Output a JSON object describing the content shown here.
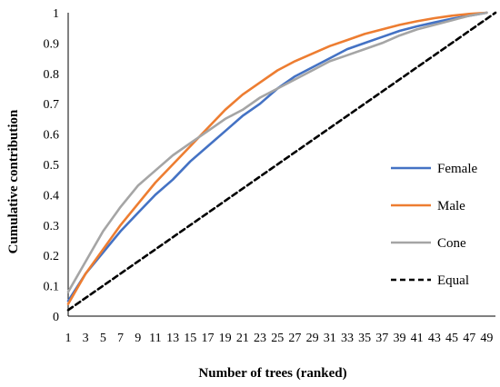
{
  "chart_data": {
    "type": "line",
    "title": "",
    "xlabel": "Number of trees (ranked)",
    "ylabel": "Cumulative contribution",
    "x": [
      1,
      3,
      5,
      7,
      9,
      11,
      13,
      15,
      17,
      19,
      21,
      23,
      25,
      27,
      29,
      31,
      33,
      35,
      37,
      39,
      41,
      43,
      45,
      47,
      49
    ],
    "x_tick_labels": [
      "1",
      "3",
      "5",
      "7",
      "9",
      "11",
      "13",
      "15",
      "17",
      "19",
      "21",
      "23",
      "25",
      "27",
      "29",
      "31",
      "33",
      "35",
      "37",
      "39",
      "41",
      "43",
      "45",
      "47",
      "49"
    ],
    "xlim": [
      1,
      50
    ],
    "ylim": [
      0,
      1
    ],
    "y_ticks": [
      0,
      0.1,
      0.2,
      0.3,
      0.4,
      0.5,
      0.6,
      0.7,
      0.8,
      0.9,
      1
    ],
    "y_tick_labels": [
      "0",
      "0.1",
      "0.2",
      "0.3",
      "0.4",
      "0.5",
      "0.6",
      "0.7",
      "0.8",
      "0.9",
      "1"
    ],
    "grid": false,
    "legend_position": "right",
    "series": [
      {
        "name": "Female",
        "color": "#4472C4",
        "dash": "solid",
        "points": [
          [
            1,
            0.05
          ],
          [
            3,
            0.14
          ],
          [
            5,
            0.21
          ],
          [
            7,
            0.28
          ],
          [
            9,
            0.34
          ],
          [
            11,
            0.4
          ],
          [
            13,
            0.45
          ],
          [
            15,
            0.51
          ],
          [
            17,
            0.56
          ],
          [
            19,
            0.61
          ],
          [
            21,
            0.66
          ],
          [
            23,
            0.7
          ],
          [
            25,
            0.75
          ],
          [
            27,
            0.79
          ],
          [
            29,
            0.82
          ],
          [
            31,
            0.85
          ],
          [
            33,
            0.88
          ],
          [
            35,
            0.9
          ],
          [
            37,
            0.92
          ],
          [
            39,
            0.94
          ],
          [
            41,
            0.955
          ],
          [
            43,
            0.968
          ],
          [
            45,
            0.98
          ],
          [
            47,
            0.99
          ],
          [
            49,
            1.0
          ]
        ]
      },
      {
        "name": "Male",
        "color": "#ED7D31",
        "dash": "solid",
        "points": [
          [
            1,
            0.04
          ],
          [
            3,
            0.14
          ],
          [
            5,
            0.22
          ],
          [
            7,
            0.3
          ],
          [
            9,
            0.37
          ],
          [
            11,
            0.44
          ],
          [
            13,
            0.5
          ],
          [
            15,
            0.56
          ],
          [
            17,
            0.62
          ],
          [
            19,
            0.68
          ],
          [
            21,
            0.73
          ],
          [
            23,
            0.77
          ],
          [
            25,
            0.81
          ],
          [
            27,
            0.84
          ],
          [
            29,
            0.865
          ],
          [
            31,
            0.89
          ],
          [
            33,
            0.91
          ],
          [
            35,
            0.93
          ],
          [
            37,
            0.945
          ],
          [
            39,
            0.96
          ],
          [
            41,
            0.972
          ],
          [
            43,
            0.982
          ],
          [
            45,
            0.99
          ],
          [
            47,
            0.996
          ],
          [
            49,
            1.0
          ]
        ]
      },
      {
        "name": "Cone",
        "color": "#A5A5A5",
        "dash": "solid",
        "points": [
          [
            1,
            0.08
          ],
          [
            3,
            0.18
          ],
          [
            5,
            0.28
          ],
          [
            7,
            0.36
          ],
          [
            9,
            0.43
          ],
          [
            11,
            0.48
          ],
          [
            13,
            0.53
          ],
          [
            15,
            0.57
          ],
          [
            17,
            0.61
          ],
          [
            19,
            0.65
          ],
          [
            21,
            0.68
          ],
          [
            23,
            0.72
          ],
          [
            25,
            0.75
          ],
          [
            27,
            0.78
          ],
          [
            29,
            0.81
          ],
          [
            31,
            0.84
          ],
          [
            33,
            0.86
          ],
          [
            35,
            0.88
          ],
          [
            37,
            0.9
          ],
          [
            39,
            0.925
          ],
          [
            41,
            0.945
          ],
          [
            43,
            0.96
          ],
          [
            45,
            0.975
          ],
          [
            47,
            0.99
          ],
          [
            49,
            1.0
          ]
        ]
      },
      {
        "name": "Equal",
        "color": "#000000",
        "dash": "dashed",
        "points": [
          [
            1,
            0.02
          ],
          [
            50,
            1.0
          ]
        ]
      }
    ]
  }
}
